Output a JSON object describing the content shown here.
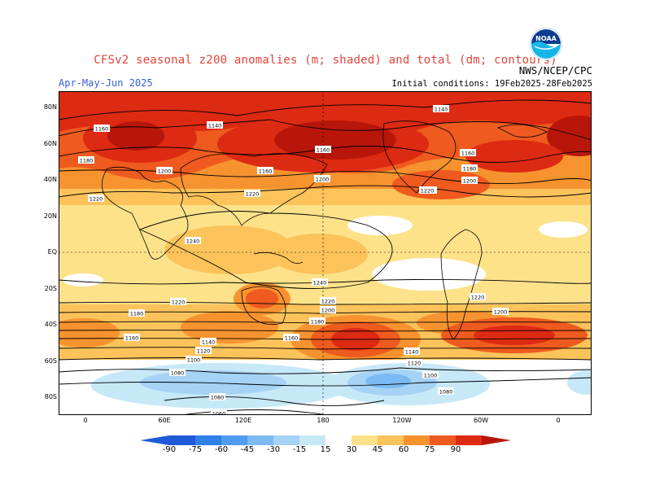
{
  "header": {
    "title": "CFSv2 seasonal z200 anomalies (m; shaded) and total (dm; contours)",
    "agency": "NWS/NCEP/CPC",
    "season": "Apr-May-Jun 2025",
    "initial_conditions": "Initial conditions: 19Feb2025-28Feb2025",
    "logo_text": "NOAA"
  },
  "map": {
    "lat_labels": [
      "80N",
      "60N",
      "40N",
      "20N",
      "EQ",
      "20S",
      "40S",
      "60S",
      "80S"
    ],
    "lon_labels": [
      "0",
      "60E",
      "120E",
      "180",
      "120W",
      "60W",
      "0"
    ],
    "contour_labels": [
      "1140",
      "1160",
      "1140",
      "1160",
      "1180",
      "1160",
      "1180",
      "1200",
      "1160",
      "1200",
      "1220",
      "1220",
      "1200",
      "1180",
      "1220",
      "1240",
      "1240",
      "1220",
      "1220",
      "1200",
      "1220",
      "1200",
      "1180",
      "1180",
      "1160",
      "1160",
      "1140",
      "1120",
      "1100",
      "1080",
      "1080",
      "1060",
      "1140",
      "1120",
      "1100",
      "1080"
    ]
  },
  "colorbar": {
    "labels": [
      "-90",
      "-75",
      "-60",
      "-45",
      "-30",
      "-15",
      "15",
      "30",
      "45",
      "60",
      "75",
      "90"
    ],
    "colors": [
      "#1f5bd8",
      "#2f7fe6",
      "#4f9cf0",
      "#7bbaf2",
      "#a5d2f5",
      "#c7e8f7",
      "#ffffff",
      "#fde28a",
      "#fcc35a",
      "#f7932f",
      "#ef5a1e",
      "#dd2a12",
      "#b8160b"
    ]
  }
}
